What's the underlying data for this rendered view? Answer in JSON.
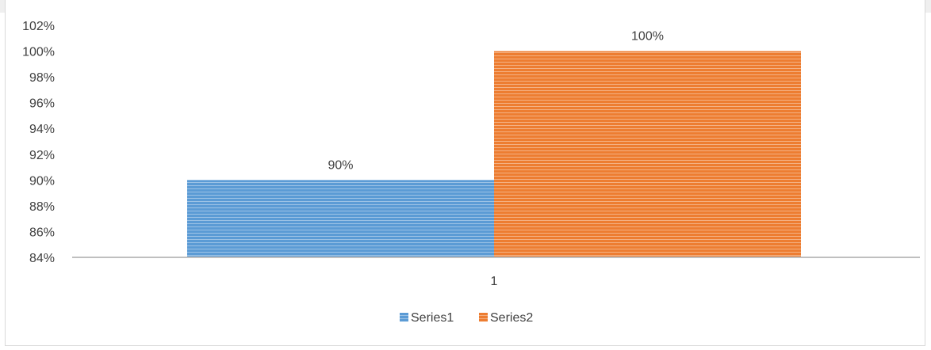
{
  "chart_data": {
    "type": "bar",
    "categories": [
      "1"
    ],
    "series": [
      {
        "name": "Series1",
        "values": [
          0.9
        ],
        "color": "#5b9bd5",
        "data_label": "90%"
      },
      {
        "name": "Series2",
        "values": [
          1.0
        ],
        "color": "#ed7d31",
        "data_label": "100%"
      }
    ],
    "ylim": [
      0.84,
      1.02
    ],
    "yticks": [
      "84%",
      "86%",
      "88%",
      "90%",
      "92%",
      "94%",
      "96%",
      "98%",
      "100%",
      "102%"
    ],
    "ytick_values": [
      0.84,
      0.86,
      0.88,
      0.9,
      0.92,
      0.94,
      0.96,
      0.98,
      1.0,
      1.02
    ],
    "legend_position": "bottom",
    "gridlines": false,
    "title": "",
    "xlabel": "",
    "ylabel": ""
  }
}
